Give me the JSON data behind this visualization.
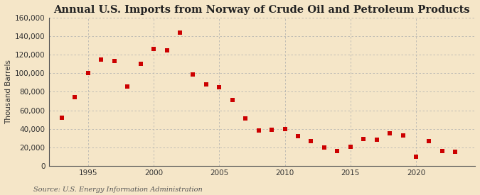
{
  "title": "Annual U.S. Imports from Norway of Crude Oil and Petroleum Products",
  "ylabel": "Thousand Barrels",
  "source": "Source: U.S. Energy Information Administration",
  "background_color": "#f5e6c8",
  "years": [
    1993,
    1994,
    1995,
    1996,
    1997,
    1998,
    1999,
    2000,
    2001,
    2002,
    2003,
    2004,
    2005,
    2006,
    2007,
    2008,
    2009,
    2010,
    2011,
    2012,
    2013,
    2014,
    2015,
    2016,
    2017,
    2018,
    2019,
    2020,
    2021,
    2022,
    2023
  ],
  "values": [
    52000,
    74000,
    100000,
    115000,
    113000,
    86000,
    110000,
    126000,
    125000,
    144000,
    99000,
    88000,
    85000,
    71000,
    51000,
    38000,
    39000,
    40000,
    32000,
    27000,
    20000,
    16000,
    21000,
    29000,
    28000,
    35000,
    33000,
    10000,
    27000,
    16000,
    15000
  ],
  "marker_color": "#cc0000",
  "marker_size": 4,
  "ylim": [
    0,
    160000
  ],
  "yticks": [
    0,
    20000,
    40000,
    60000,
    80000,
    100000,
    120000,
    140000,
    160000
  ],
  "xlim": [
    1992.0,
    2024.5
  ],
  "xticks": [
    1995,
    2000,
    2005,
    2010,
    2015,
    2020
  ],
  "grid_color": "#b0b0b0",
  "title_fontsize": 10.5,
  "label_fontsize": 7.5,
  "tick_fontsize": 7.5,
  "source_fontsize": 7
}
